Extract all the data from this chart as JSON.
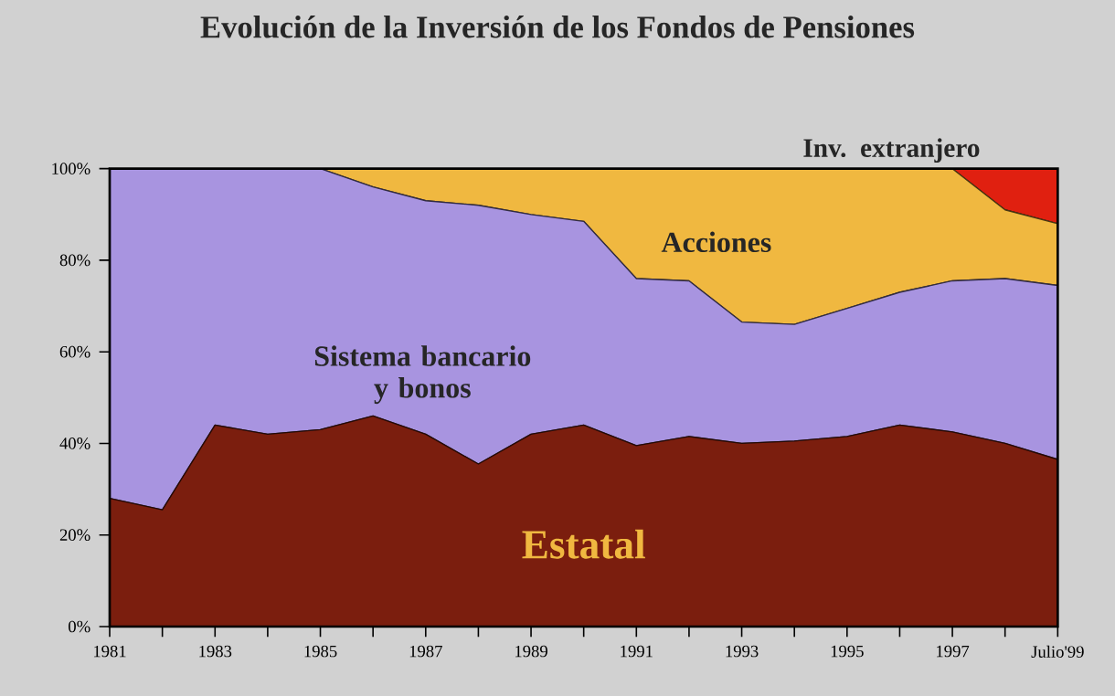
{
  "chart_data": {
    "type": "area",
    "stacked": true,
    "title": "Evolución de la Inversión de los Fondos de Pensiones",
    "categories": [
      "1981",
      null,
      "1983",
      null,
      "1985",
      null,
      "1987",
      null,
      "1989",
      null,
      "1991",
      null,
      "1993",
      null,
      "1995",
      null,
      "1997",
      null,
      "Julio'99"
    ],
    "series": [
      {
        "name": "Estatal",
        "color": "#7b1e0e",
        "values": [
          28,
          25.5,
          44,
          42,
          43,
          46,
          42,
          35.5,
          42,
          44,
          39.5,
          41.5,
          40,
          40.5,
          41.5,
          44,
          42.5,
          40,
          36.5
        ]
      },
      {
        "name": "Sistema bancario y bonos",
        "color": "#a894e0",
        "values": [
          72,
          74.5,
          56,
          58,
          57,
          50,
          51,
          56.5,
          48,
          44.5,
          36.5,
          34,
          26.5,
          25.5,
          28,
          29,
          33,
          36,
          38
        ]
      },
      {
        "name": "Acciones",
        "color": "#f0b840",
        "values": [
          0,
          0,
          0,
          0,
          0,
          4,
          7,
          8,
          10,
          11.5,
          24,
          24.5,
          33.5,
          34,
          30.5,
          27,
          24.5,
          15,
          13.5
        ]
      },
      {
        "name": "Inv. extranjero",
        "color": "#e02010",
        "values": [
          0,
          0,
          0,
          0,
          0,
          0,
          0,
          0,
          0,
          0,
          0,
          0,
          0,
          0,
          0,
          0,
          0,
          9,
          12
        ]
      }
    ],
    "ylim": [
      0,
      100
    ],
    "yticks": [
      {
        "value": 0,
        "label": "0%"
      },
      {
        "value": 20,
        "label": "20%"
      },
      {
        "value": 40,
        "label": "40%"
      },
      {
        "value": 60,
        "label": "60%"
      },
      {
        "value": 80,
        "label": "80%"
      },
      {
        "value": 100,
        "label": "100%"
      }
    ],
    "grid": false
  }
}
